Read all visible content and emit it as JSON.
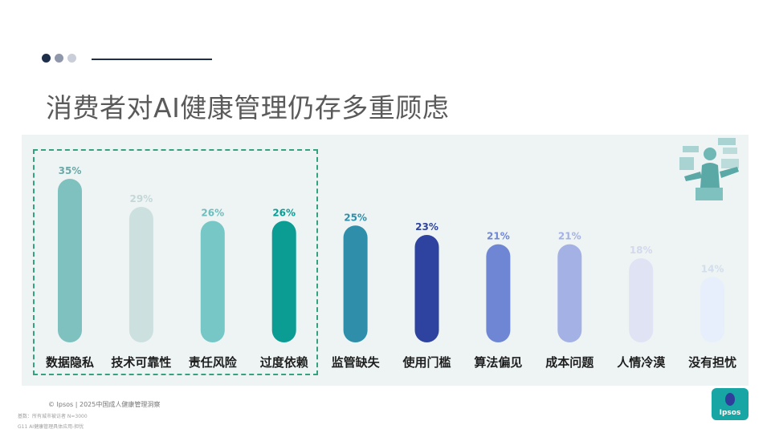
{
  "header": {
    "dots": [
      "#1f2f4a",
      "#8f98aa",
      "#c9ced8"
    ],
    "title": "消费者对AI健康管理仍存多重顾虑"
  },
  "chart_data": {
    "type": "bar",
    "title": "",
    "xlabel": "",
    "ylabel": "",
    "ylim": [
      0,
      40
    ],
    "value_suffix": "%",
    "categories": [
      "数据隐私",
      "技术可靠性",
      "责任风险",
      "过度依赖",
      "监管缺失",
      "使用门槛",
      "算法偏见",
      "成本问题",
      "人情冷漠",
      "没有担忧"
    ],
    "values": [
      35,
      29,
      26,
      26,
      25,
      23,
      21,
      21,
      18,
      14
    ],
    "colors": [
      "#7fc1bf",
      "#cde0e0",
      "#76c7c6",
      "#0b9d94",
      "#2f8ea9",
      "#2e439f",
      "#6f86d4",
      "#a4b1e5",
      "#dfe3f4",
      "#e6effb"
    ],
    "label_colors": [
      "#6aa9a8",
      "#c4d7d7",
      "#6ebebe",
      "#0b9d94",
      "#2f8ea9",
      "#2e439f",
      "#6f86d4",
      "#a4b1e5",
      "#d3d8ec",
      "#d3deec"
    ],
    "highlighted_categories": [
      "数据隐私",
      "技术可靠性",
      "责任风险",
      "过度依赖"
    ],
    "grid": false,
    "legend": "none"
  },
  "footer": {
    "source": "© Ipsos | 2025中国成人健康管理洞察",
    "base": "基数：所有城市被访者 N=3000",
    "question": "G11 AI健康管理具体应用-担忧"
  },
  "logo": {
    "text": "Ipsos",
    "color": "#17a6a3"
  }
}
